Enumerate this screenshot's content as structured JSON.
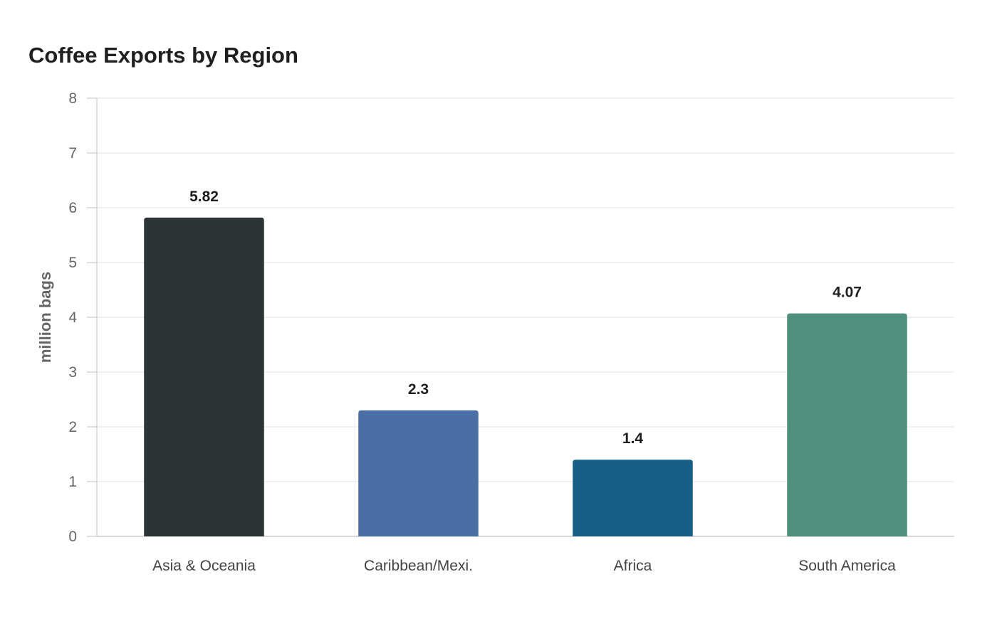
{
  "chart_data": {
    "type": "bar",
    "title": "Coffee Exports by Region",
    "xlabel": "",
    "ylabel": "million bags",
    "categories": [
      "Asia & Oceania",
      "Caribbean/Mexi.",
      "Africa",
      "South America"
    ],
    "values": [
      5.82,
      2.3,
      1.4,
      4.07
    ],
    "value_labels": [
      "5.82",
      "2.3",
      "1.4",
      "4.07"
    ],
    "colors": [
      "#2d3436",
      "#4a6fa5",
      "#166088",
      "#4f8f7c"
    ],
    "ylim": [
      0,
      8
    ],
    "yticks": [
      0,
      1,
      2,
      3,
      4,
      5,
      6,
      7,
      8
    ],
    "grid": true,
    "legend": "none"
  }
}
